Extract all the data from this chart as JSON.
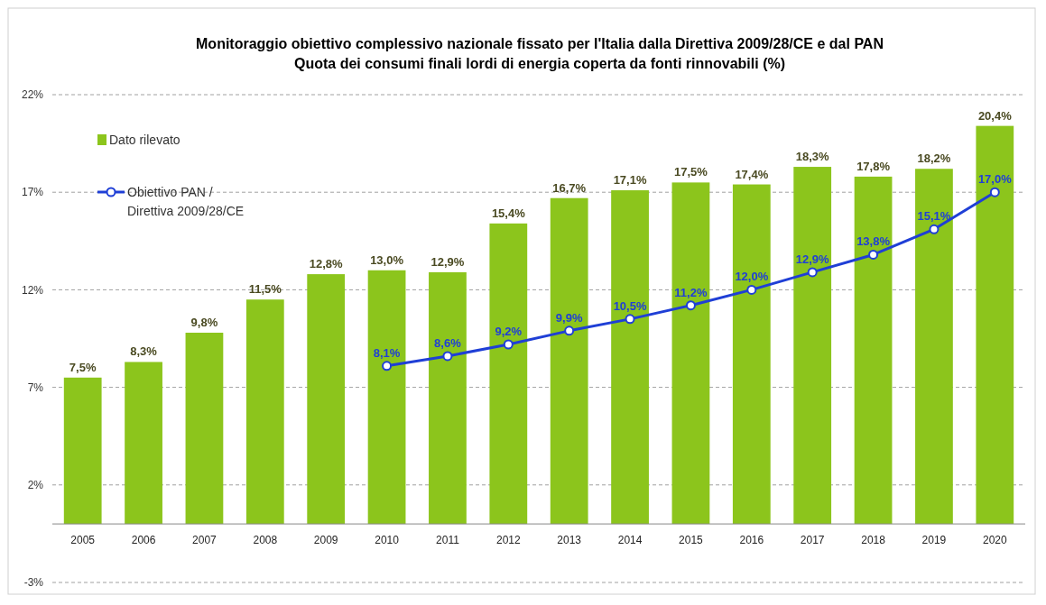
{
  "chart_data": {
    "type": "bar",
    "title": "Monitoraggio obiettivo complessivo nazionale fissato per l'Italia dalla Direttiva 2009/28/CE e dal PAN",
    "subtitle": "Quota dei consumi finali lordi di energia coperta da fonti rinnovabili (%)",
    "categories": [
      "2005",
      "2006",
      "2007",
      "2008",
      "2009",
      "2010",
      "2011",
      "2012",
      "2013",
      "2014",
      "2015",
      "2016",
      "2017",
      "2018",
      "2019",
      "2020"
    ],
    "series": [
      {
        "name": "Dato rilevato",
        "color": "#8cc51c",
        "values": [
          7.5,
          8.3,
          9.8,
          11.5,
          12.8,
          13.0,
          12.9,
          15.4,
          16.7,
          17.1,
          17.5,
          17.4,
          18.3,
          17.8,
          18.2,
          20.4
        ],
        "value_labels": [
          "7,5%",
          "8,3%",
          "9,8%",
          "11,5%",
          "12,8%",
          "13,0%",
          "12,9%",
          "15,4%",
          "16,7%",
          "17,1%",
          "17,5%",
          "17,4%",
          "18,3%",
          "17,8%",
          "18,2%",
          "20,4%"
        ]
      },
      {
        "name": "Obiettivo PAN / Direttiva 2009/28/CE",
        "type": "line",
        "color": "#1f3fd6",
        "marker": "circle",
        "values": [
          null,
          null,
          null,
          null,
          null,
          8.1,
          8.6,
          9.2,
          9.9,
          10.5,
          11.2,
          12.0,
          12.9,
          13.8,
          15.1,
          17.0
        ],
        "value_labels": [
          null,
          null,
          null,
          null,
          null,
          "8,1%",
          "8,6%",
          "9,2%",
          "9,9%",
          "10,5%",
          "11,2%",
          "12,0%",
          "12,9%",
          "13,8%",
          "15,1%",
          "17,0%"
        ]
      }
    ],
    "ylim": [
      -3,
      22
    ],
    "yticks": [
      {
        "value": -3,
        "label": "-3%"
      },
      {
        "value": 2,
        "label": "2%"
      },
      {
        "value": 7,
        "label": "7%"
      },
      {
        "value": 12,
        "label": "12%"
      },
      {
        "value": 17,
        "label": "17%"
      },
      {
        "value": 22,
        "label": "22%"
      }
    ],
    "grid": "y",
    "legend": "top left"
  }
}
